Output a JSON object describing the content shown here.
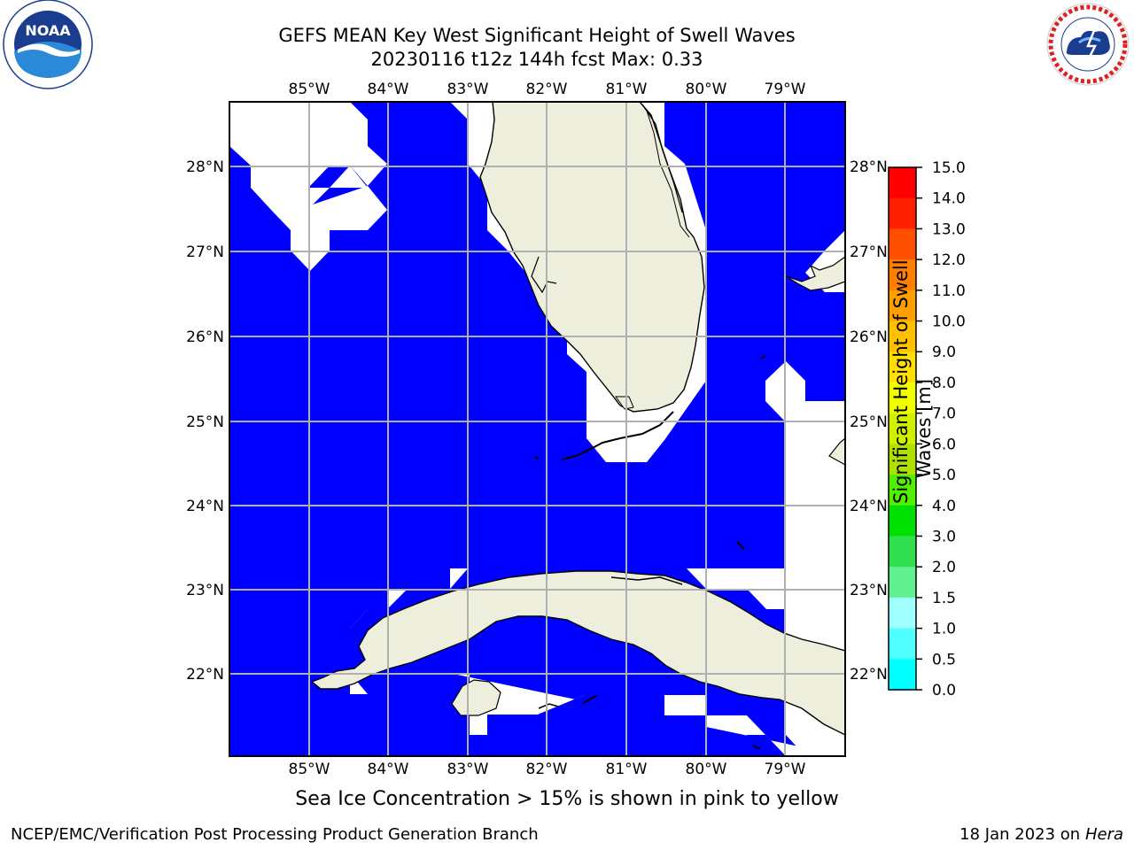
{
  "title_line1": "GEFS MEAN Key West Significant Height of Swell Waves",
  "title_line2": "20230116 t12z 144h fcst   Max: 0.33",
  "map": {
    "lon_labels": [
      "85°W",
      "84°W",
      "83°W",
      "82°W",
      "81°W",
      "80°W",
      "79°W"
    ],
    "lat_labels": [
      "28°N",
      "27°N",
      "26°N",
      "25°N",
      "24°N",
      "23°N",
      "22°N"
    ],
    "water_color": "#0000ff",
    "land_color": "#eeeedd",
    "nodata_color": "#ffffff",
    "grid_color": "#b0b0b0"
  },
  "colorbar": {
    "ticks": [
      "15.0",
      "14.0",
      "13.0",
      "12.0",
      "11.0",
      "10.0",
      "9.0",
      "8.0",
      "7.0",
      "6.0",
      "5.0",
      "4.0",
      "3.0",
      "2.0",
      "1.5",
      "1.0",
      "0.5",
      "0.0"
    ],
    "colors": [
      "#ff0000",
      "#ff2000",
      "#ff5000",
      "#ff8000",
      "#ffa000",
      "#ffc000",
      "#ffe000",
      "#f0ff00",
      "#d0f000",
      "#b0e000",
      "#50f000",
      "#00e000",
      "#30e050",
      "#60f090",
      "#a0ffff",
      "#50ffff",
      "#00ffff",
      "#0080ff",
      "#0000ff"
    ],
    "label_line1": "Significant Height of Swell",
    "label_line2": "Waves [m]"
  },
  "note": "Sea Ice Concentration > 15% is shown in pink to yellow",
  "footer_left": "NCEP/EMC/Verification Post Processing Product Generation Branch",
  "footer_right_prefix": "18 Jan 2023 on ",
  "footer_right_machine": "Hera",
  "logos": {
    "noaa_text": "NOAA",
    "nws_text": "NATIONAL WEATHER SERVICE"
  }
}
